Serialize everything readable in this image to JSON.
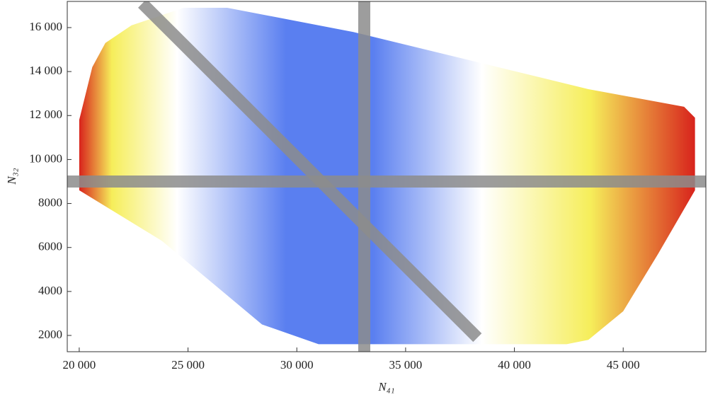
{
  "chart_data": {
    "type": "contour",
    "x_label": "N₄₁",
    "y_label": "N₃₂",
    "xlim": [
      19450,
      48800
    ],
    "ylim": [
      1260,
      17190
    ],
    "xticks": [
      {
        "value": 20000,
        "label": "20 000"
      },
      {
        "value": 25000,
        "label": "25 000"
      },
      {
        "value": 30000,
        "label": "30 000"
      },
      {
        "value": 35000,
        "label": "35 000"
      },
      {
        "value": 40000,
        "label": "40 000"
      },
      {
        "value": 45000,
        "label": "45 000"
      }
    ],
    "yticks": [
      2000,
      4000,
      6000,
      8000,
      {
        "value": 10000,
        "label": "10 000"
      },
      {
        "value": 12000,
        "label": "12 000"
      },
      {
        "value": 14000,
        "label": "14 000"
      },
      {
        "value": 16000,
        "label": "16 000"
      }
    ],
    "region": {
      "x": [
        20000,
        20600,
        21200,
        22400,
        24800,
        26800,
        32600,
        43400,
        47800,
        48300,
        48300,
        46600,
        45000,
        43400,
        42400,
        31000,
        28400,
        26100,
        23800,
        20000
      ],
      "y": [
        11800,
        14200,
        15300,
        16100,
        16900,
        16900,
        15800,
        13200,
        12400,
        11900,
        8600,
        5700,
        3100,
        1800,
        1600,
        1600,
        2500,
        4400,
        6300,
        8600
      ]
    },
    "colorscale": [
      {
        "value": 20000,
        "color": "#d8231c"
      },
      {
        "value": 21500,
        "color": "#f6ee5a"
      },
      {
        "value": 24500,
        "color": "#ffffff"
      },
      {
        "value": 29500,
        "color": "#5a7ff0"
      },
      {
        "value": 33500,
        "color": "#5a7ff0"
      },
      {
        "value": 38500,
        "color": "#ffffff"
      },
      {
        "value": 43500,
        "color": "#f6ee5a"
      },
      {
        "value": 48300,
        "color": "#d8231c"
      }
    ],
    "reference_lines": [
      {
        "x": [
          19450,
          48800
        ],
        "y": [
          9000,
          9000
        ]
      },
      {
        "x": [
          33100,
          33100
        ],
        "y": [
          1260,
          17190
        ]
      },
      {
        "x": [
          22900,
          38300
        ],
        "y": [
          17100,
          1900
        ]
      }
    ],
    "reference_color": "#8c8c8c"
  }
}
